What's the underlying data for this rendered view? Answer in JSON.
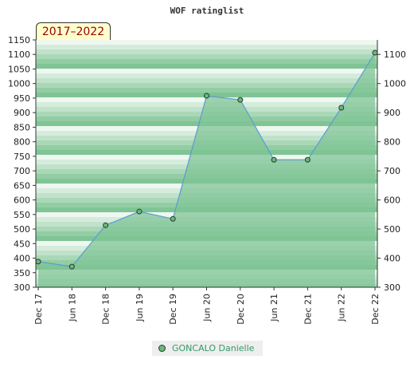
{
  "period_label": "2017–2022",
  "legend": {
    "label": "GONCALO Danielle"
  },
  "colors": {
    "fill": "#7fc495",
    "line": "#5b9bd5",
    "marker": "#66bb77",
    "period_text": "#990000",
    "legend_text": "#339966"
  },
  "chart_data": {
    "type": "area",
    "title": "WOF ratinglist",
    "x": [
      "Dec 17",
      "Jun 18",
      "Dec 18",
      "Jun 19",
      "Dec 19",
      "Jun 20",
      "Dec 20",
      "Jun 21",
      "Dec 21",
      "Jun 22",
      "Dec 22"
    ],
    "series": [
      {
        "name": "GONCALO Danielle",
        "values": [
          388,
          371,
          513,
          560,
          535,
          958,
          944,
          738,
          738,
          917,
          1106
        ]
      }
    ],
    "ylim": [
      300,
      1150
    ],
    "left_ticks": [
      300,
      350,
      400,
      450,
      500,
      550,
      600,
      650,
      700,
      750,
      800,
      850,
      900,
      950,
      1000,
      1050,
      1100,
      1150
    ],
    "right_ticks": [
      300,
      400,
      500,
      600,
      700,
      800,
      900,
      1000,
      1100
    ],
    "grid": true,
    "legend_position": "bottom"
  }
}
